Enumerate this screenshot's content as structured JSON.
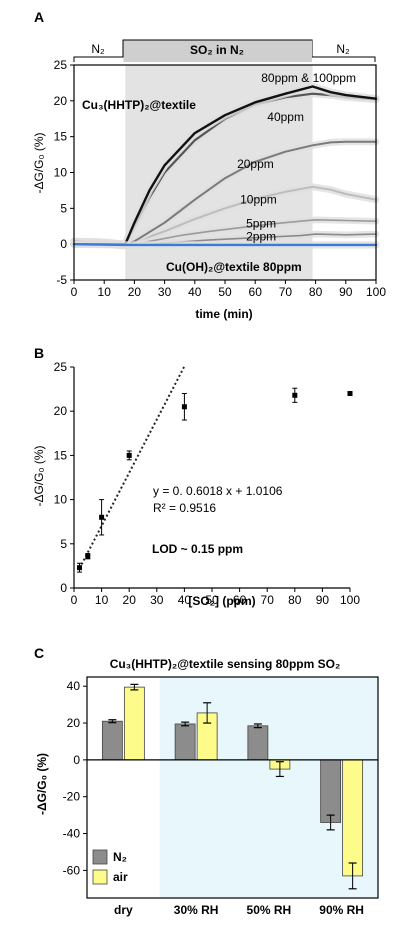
{
  "colors": {
    "band_fill": "#e3e3e3",
    "blue_line": "#3a7bd5",
    "bar_n2": "#8c8c8c",
    "bar_air": "#fdfb8a",
    "bg_humid": "#e8f7fc"
  },
  "chart_data": [
    {
      "panel": "A",
      "type": "line",
      "xlabel": "time (min)",
      "ylabel": "-ΔG/G₀ (%)",
      "xlim": [
        0,
        100
      ],
      "ylim": [
        -5,
        25
      ],
      "xticks": [
        "0",
        "10",
        "20",
        "30",
        "40",
        "50",
        "60",
        "70",
        "80",
        "90",
        "100"
      ],
      "yticks": [
        "-5",
        "0",
        "5",
        "10",
        "15",
        "20",
        "25"
      ],
      "gas_band": {
        "start": 17,
        "end": 79
      },
      "header": {
        "left": "N₂",
        "middle": "SO₂ in N₂",
        "right": "N₂"
      },
      "material_label": "Cu₃(HHTP)₂@textile",
      "control_label": "Cu(OH)₂@textile 80ppm",
      "series": [
        {
          "name": "80ppm & 100ppm",
          "color": "#111111",
          "width": 2.4,
          "x": [
            0,
            10,
            17,
            20,
            25,
            30,
            40,
            50,
            60,
            70,
            79,
            85,
            90,
            100
          ],
          "y": [
            0,
            0,
            0,
            3,
            7.5,
            11,
            15.5,
            18,
            19.8,
            21,
            22,
            21.2,
            20.8,
            20.3
          ]
        },
        {
          "name": "40ppm",
          "color": "#555555",
          "width": 2.2,
          "x": [
            0,
            10,
            17,
            20,
            25,
            30,
            40,
            50,
            60,
            70,
            79,
            85,
            90,
            100
          ],
          "y": [
            0,
            0,
            0,
            2.5,
            6.5,
            10,
            14.5,
            17.5,
            19.5,
            20.5,
            21,
            20.8,
            20.5,
            20.2
          ]
        },
        {
          "name": "20ppm",
          "color": "#7a7a7a",
          "width": 2,
          "x": [
            0,
            10,
            17,
            20,
            30,
            40,
            50,
            60,
            70,
            79,
            85,
            90,
            100
          ],
          "y": [
            0.4,
            0.3,
            0,
            0.4,
            3,
            6.2,
            9.2,
            11.5,
            12.9,
            13.8,
            14.2,
            14.3,
            14.3
          ]
        },
        {
          "name": "10ppm",
          "color": "#bdbdbd",
          "width": 2,
          "x": [
            0,
            10,
            17,
            20,
            30,
            40,
            50,
            60,
            70,
            79,
            85,
            90,
            100
          ],
          "y": [
            0.4,
            0.3,
            0,
            0.3,
            1.8,
            3.5,
            5,
            6.3,
            7.3,
            8,
            7.6,
            7,
            6.2
          ]
        },
        {
          "name": "5ppm",
          "color": "#9a9a9a",
          "width": 1.6,
          "x": [
            0,
            10,
            17,
            25,
            35,
            45,
            55,
            65,
            75,
            80,
            90,
            100
          ],
          "y": [
            0.1,
            0,
            0,
            0.4,
            1.2,
            1.8,
            2.3,
            2.8,
            3.2,
            3.4,
            3.3,
            3.2
          ]
        },
        {
          "name": "2ppm",
          "color": "#8a8a8a",
          "width": 1.6,
          "x": [
            0,
            10,
            17,
            25,
            35,
            45,
            55,
            65,
            75,
            80,
            90,
            100
          ],
          "y": [
            0,
            0,
            -0.3,
            0,
            0.3,
            0.6,
            0.8,
            1,
            1.2,
            1.4,
            1.3,
            1.4
          ]
        },
        {
          "name": "Cu(OH)₂@textile 80ppm",
          "color": "#3a7bd5",
          "width": 2.4,
          "x": [
            0,
            17,
            100
          ],
          "y": [
            0,
            -0.1,
            -0.1
          ]
        }
      ],
      "series_labels": [
        {
          "text": "80ppm & 100ppm",
          "x": 62,
          "y": 22.6
        },
        {
          "text": "40ppm",
          "x": 64,
          "y": 17.2
        },
        {
          "text": "20ppm",
          "x": 54,
          "y": 10.6
        },
        {
          "text": "10ppm",
          "x": 55,
          "y": 5.7
        },
        {
          "text": "5ppm",
          "x": 57,
          "y": 2.3
        },
        {
          "text": "2ppm",
          "x": 57,
          "y": 0.5
        }
      ]
    },
    {
      "panel": "B",
      "type": "scatter",
      "xlabel": "[SO₂] (ppm)",
      "ylabel": "-ΔG/G₀ (%)",
      "xlim": [
        0,
        100
      ],
      "ylim": [
        0,
        25
      ],
      "xticks": [
        "0",
        "10",
        "20",
        "30",
        "40",
        "50",
        "60",
        "70",
        "80",
        "90",
        "100"
      ],
      "yticks": [
        "0",
        "5",
        "10",
        "15",
        "20",
        "25"
      ],
      "points": [
        {
          "x": 2,
          "y": 2.3,
          "err": 0.5
        },
        {
          "x": 5,
          "y": 3.6,
          "err": 0.3
        },
        {
          "x": 10,
          "y": 8,
          "err": 2
        },
        {
          "x": 20,
          "y": 15,
          "err": 0.5
        },
        {
          "x": 40,
          "y": 20.5,
          "err": 1.5
        },
        {
          "x": 80,
          "y": 21.8,
          "err": 0.8
        },
        {
          "x": 100,
          "y": 22,
          "err": 0.2
        }
      ],
      "fit": {
        "slope": 0.6018,
        "intercept": 1.0106,
        "x_range": [
          0,
          40
        ]
      },
      "equation": "y = 0. 0.6018 x + 1.0106",
      "r2": "R² = 0.9516",
      "lod": "LOD ~ 0.15 ppm"
    },
    {
      "panel": "C",
      "type": "bar",
      "title": "Cu₃(HHTP)₂@textile sensing 80ppm SO₂",
      "ylabel": "-ΔG/G₀ (%)",
      "categories": [
        "dry",
        "30% RH",
        "50% RH",
        "90% RH"
      ],
      "ylim": [
        -75,
        45
      ],
      "yticks": [
        "40",
        "20",
        "0",
        "-20",
        "-40",
        "-60"
      ],
      "series": [
        {
          "name": "N₂",
          "values": [
            21,
            19.5,
            18.5,
            -34
          ],
          "errors": [
            0.8,
            1,
            1,
            4
          ]
        },
        {
          "name": "air",
          "values": [
            39.5,
            25.5,
            -5,
            -63
          ],
          "errors": [
            1.5,
            5.5,
            4,
            7
          ]
        }
      ],
      "legend_position": "bottom-left"
    }
  ]
}
